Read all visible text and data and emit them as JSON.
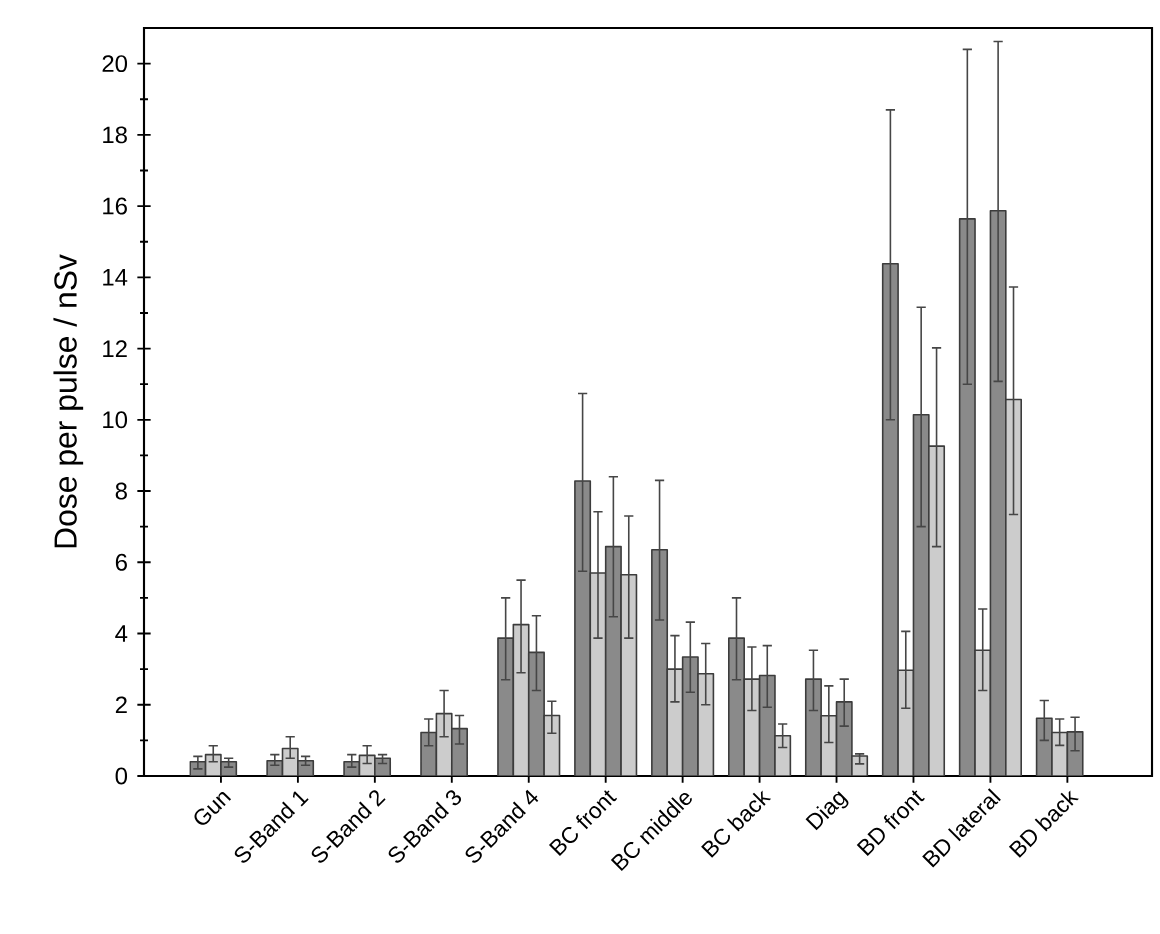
{
  "chart_data": {
    "type": "bar",
    "ylabel": "Dose per pulse / nSv",
    "categories": [
      "Gun",
      "S-Band 1",
      "S-Band 2",
      "S-Band 3",
      "S-Band 4",
      "BC front",
      "BC middle",
      "BC back",
      "Diag",
      "BD front",
      "BD lateral",
      "BD back"
    ],
    "ylim": [
      0,
      21
    ],
    "yticks": [
      0,
      2,
      4,
      6,
      8,
      10,
      12,
      14,
      16,
      18,
      20
    ],
    "series": [
      {
        "color": "#8a8a8a",
        "values": [
          0.4,
          0.43,
          0.4,
          1.22,
          3.87,
          8.28,
          6.35,
          3.87,
          2.72,
          14.38,
          15.64,
          1.62
        ],
        "errors": [
          [
            0.2,
            0.55
          ],
          [
            0.3,
            0.6
          ],
          [
            0.25,
            0.6
          ],
          [
            0.85,
            1.6
          ],
          [
            2.7,
            5.0
          ],
          [
            5.75,
            10.74
          ],
          [
            4.38,
            8.3
          ],
          [
            2.7,
            5.0
          ],
          [
            1.84,
            3.53
          ],
          [
            10.0,
            18.7
          ],
          [
            11.0,
            20.4
          ],
          [
            1.0,
            2.12
          ]
        ]
      },
      {
        "color": "#cccccc",
        "values": [
          0.6,
          0.77,
          0.58,
          1.75,
          4.25,
          5.7,
          3.0,
          2.72,
          1.69,
          2.97,
          3.53,
          1.22
        ],
        "errors": [
          [
            0.4,
            0.85
          ],
          [
            0.5,
            1.1
          ],
          [
            0.35,
            0.85
          ],
          [
            1.1,
            2.4
          ],
          [
            2.9,
            5.5
          ],
          [
            3.87,
            7.42
          ],
          [
            2.08,
            3.94
          ],
          [
            1.84,
            3.62
          ],
          [
            0.94,
            2.53
          ],
          [
            1.9,
            4.06
          ],
          [
            2.4,
            4.69
          ],
          [
            0.86,
            1.6
          ]
        ]
      },
      {
        "color": "#8a8a8a",
        "values": [
          0.4,
          0.43,
          0.5,
          1.33,
          3.47,
          6.44,
          3.34,
          2.82,
          2.08,
          10.14,
          15.87,
          1.24
        ],
        "errors": [
          [
            0.25,
            0.5
          ],
          [
            0.3,
            0.55
          ],
          [
            0.35,
            0.6
          ],
          [
            0.9,
            1.7
          ],
          [
            2.4,
            4.5
          ],
          [
            4.47,
            8.4
          ],
          [
            2.35,
            4.32
          ],
          [
            1.93,
            3.66
          ],
          [
            1.4,
            2.72
          ],
          [
            7.0,
            13.16
          ],
          [
            11.08,
            20.62
          ],
          [
            0.71,
            1.65
          ]
        ]
      },
      {
        "color": "#cccccc",
        "values": [
          null,
          null,
          null,
          null,
          1.7,
          5.65,
          2.87,
          1.13,
          0.56,
          9.26,
          10.57,
          null
        ],
        "errors": [
          null,
          null,
          null,
          null,
          [
            1.2,
            2.1
          ],
          [
            3.87,
            7.3
          ],
          [
            2.0,
            3.72
          ],
          [
            0.8,
            1.46
          ],
          [
            0.34,
            0.62
          ],
          [
            6.44,
            12.02
          ],
          [
            7.34,
            13.73
          ],
          null
        ]
      }
    ]
  }
}
